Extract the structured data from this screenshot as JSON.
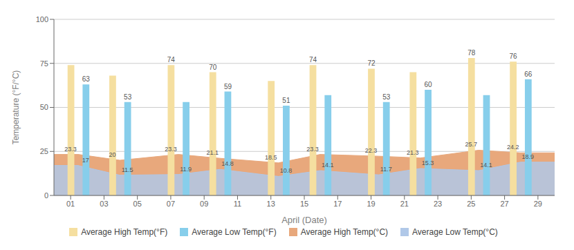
{
  "chart_data": {
    "type": "bar",
    "x_label": "April (Date)",
    "y_label": "Temperature (°F/°C)",
    "series": [
      {
        "name": "Average High Temp(°F)",
        "type": "bar",
        "color": "#F5DFA0",
        "x": [
          1.0,
          3.5,
          7.0,
          9.5,
          13.0,
          15.5,
          19.0,
          21.5,
          25.0,
          27.5
        ],
        "values": [
          74,
          68,
          74,
          70,
          65,
          74,
          72,
          70,
          78,
          76
        ],
        "data_labels": true
      },
      {
        "name": "Average Low Temp(°F)",
        "type": "bar",
        "color": "#87CEEB",
        "x": [
          1.9,
          4.4,
          7.9,
          10.4,
          13.9,
          16.4,
          19.9,
          22.4,
          25.9,
          28.4
        ],
        "values": [
          63,
          53,
          53,
          59,
          51,
          57,
          53,
          60,
          57,
          66
        ],
        "data_labels": true
      },
      {
        "name": "Average High Temp(°C)",
        "type": "area",
        "color": "#E8A87C",
        "x": [
          0,
          1.45,
          3.95,
          7.45,
          9.95,
          13.45,
          15.95,
          19.45,
          21.95,
          25.45,
          27.95,
          30
        ],
        "values": [
          23.3,
          23.3,
          20,
          23.3,
          21.1,
          18.5,
          23.3,
          22.3,
          21.3,
          25.7,
          24.2,
          24.2
        ],
        "label_x": [
          1.0,
          3.5,
          7.0,
          9.5,
          13.0,
          15.5,
          19.0,
          21.5,
          25.0,
          27.5
        ],
        "label_values": [
          23.3,
          20,
          23.3,
          21.1,
          18.5,
          23.3,
          22.3,
          21.3,
          25.7,
          24.2
        ]
      },
      {
        "name": "Average Low Temp(°C)",
        "type": "area",
        "color": "#B0C8E8",
        "x": [
          0,
          1.45,
          3.95,
          7.45,
          9.95,
          13.45,
          15.95,
          19.45,
          21.95,
          25.45,
          27.95,
          30
        ],
        "values": [
          17,
          17,
          11.5,
          11.9,
          14.8,
          10.8,
          14.1,
          11.7,
          15.3,
          14.1,
          18.9,
          18.9
        ],
        "label_x": [
          1.9,
          4.4,
          7.9,
          10.4,
          13.9,
          16.4,
          19.9,
          22.4,
          25.9,
          28.4
        ],
        "label_values": [
          17,
          11.5,
          11.9,
          14.8,
          10.8,
          14.1,
          11.7,
          15.3,
          14.1,
          18.9
        ]
      }
    ],
    "xlim": [
      0,
      30
    ],
    "xticks": [
      {
        "value": 1,
        "label": "01"
      },
      {
        "value": 3,
        "label": "03"
      },
      {
        "value": 5,
        "label": "05"
      },
      {
        "value": 7,
        "label": "07"
      },
      {
        "value": 9,
        "label": "09"
      },
      {
        "value": 11,
        "label": "11"
      },
      {
        "value": 13,
        "label": "13"
      },
      {
        "value": 15,
        "label": "15"
      },
      {
        "value": 17,
        "label": "17"
      },
      {
        "value": 19,
        "label": "19"
      },
      {
        "value": 21,
        "label": "21"
      },
      {
        "value": 23,
        "label": "23"
      },
      {
        "value": 25,
        "label": "25"
      },
      {
        "value": 27,
        "label": "27"
      },
      {
        "value": 29,
        "label": "29"
      }
    ],
    "ylim": [
      0,
      100
    ],
    "yticks": [
      0,
      25,
      50,
      75,
      100
    ],
    "grid": "y",
    "legend": "bottom"
  }
}
